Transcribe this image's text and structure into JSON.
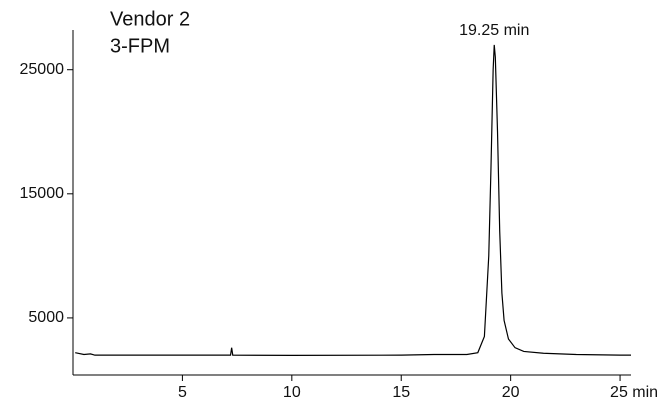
{
  "chart_data": {
    "type": "line",
    "title": "Vendor 2",
    "subtitle": "3-FPM",
    "annotation": "19.25 min",
    "x": [
      0.1,
      0.5,
      0.8,
      1,
      3,
      5,
      7.2,
      7.25,
      7.3,
      10,
      15,
      16.5,
      18,
      18.5,
      18.8,
      19,
      19.1,
      19.2,
      19.25,
      19.3,
      19.4,
      19.5,
      19.6,
      19.7,
      19.9,
      20.2,
      20.6,
      21.5,
      23,
      25,
      25.5
    ],
    "series": [
      {
        "color": "#000000",
        "values": [
          2200,
          2050,
          2100,
          2000,
          2000,
          2000,
          2000,
          2600,
          2000,
          1980,
          2000,
          2050,
          2050,
          2200,
          3500,
          10000,
          17000,
          25000,
          27000,
          26000,
          20000,
          12000,
          7000,
          4800,
          3300,
          2600,
          2300,
          2150,
          2050,
          2000,
          2000
        ]
      }
    ],
    "xlim": [
      0,
      25.5
    ],
    "xticks": [
      5,
      10,
      15,
      20,
      {
        "value": 25,
        "label": "25 min"
      }
    ],
    "ylim": [
      400,
      28200
    ],
    "yticks": [
      5000,
      15000,
      25000
    ]
  }
}
